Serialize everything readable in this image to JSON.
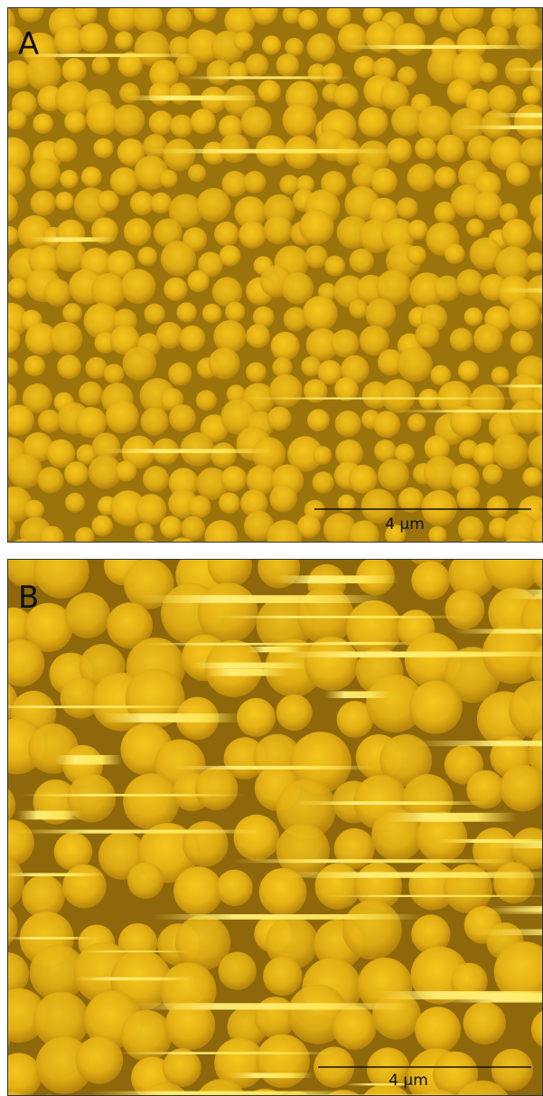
{
  "panels": [
    {
      "label": "A",
      "scale_bar": "4 μm"
    },
    {
      "label": "B",
      "scale_bar": "4 μm"
    }
  ]
}
